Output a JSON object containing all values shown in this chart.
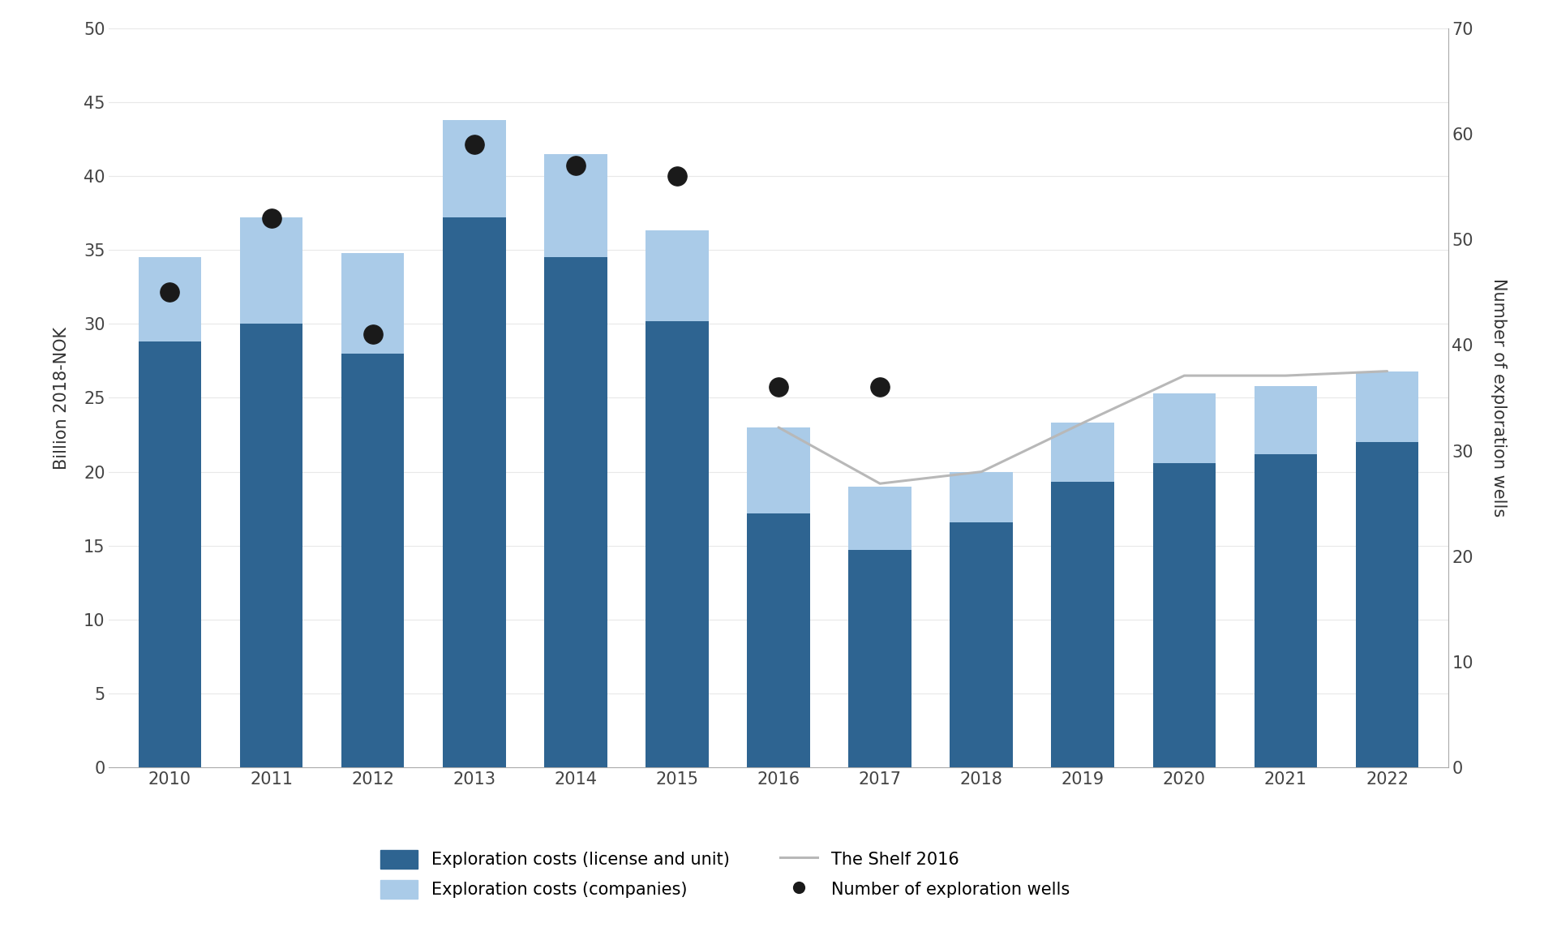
{
  "years": [
    2010,
    2011,
    2012,
    2013,
    2014,
    2015,
    2016,
    2017,
    2018,
    2019,
    2020,
    2021,
    2022
  ],
  "dark_blue_bars": [
    28.8,
    30.0,
    28.0,
    37.2,
    34.5,
    30.2,
    17.2,
    14.7,
    16.6,
    19.3,
    20.6,
    21.2,
    22.0
  ],
  "light_blue_tops": [
    34.5,
    37.2,
    34.8,
    43.8,
    41.5,
    36.3,
    23.0,
    19.0,
    20.0,
    23.3,
    25.3,
    25.8,
    26.8
  ],
  "shelf_line": [
    null,
    null,
    null,
    null,
    null,
    null,
    23.0,
    19.2,
    20.0,
    23.3,
    26.5,
    26.5,
    26.8
  ],
  "exploration_wells": [
    45,
    52,
    41,
    59,
    57,
    56,
    36,
    36,
    null,
    null,
    null,
    null,
    null
  ],
  "dark_blue_color": "#2e6491",
  "light_blue_color": "#aacbe8",
  "shelf_line_color": "#b8b8b8",
  "dot_color": "#1a1a1a",
  "ylabel_left": "Billion 2018-NOK",
  "ylabel_right": "Number of exploration wells",
  "ylim_left": [
    0,
    50
  ],
  "ylim_right": [
    0,
    70
  ],
  "yticks_left": [
    0,
    5,
    10,
    15,
    20,
    25,
    30,
    35,
    40,
    45,
    50
  ],
  "yticks_right": [
    0,
    10,
    20,
    30,
    40,
    50,
    60,
    70
  ],
  "legend_labels": [
    "Exploration costs (license and unit)",
    "Exploration costs (companies)",
    "The Shelf 2016",
    "Number of exploration wells"
  ],
  "background_color": "#ffffff",
  "bar_width": 0.62
}
